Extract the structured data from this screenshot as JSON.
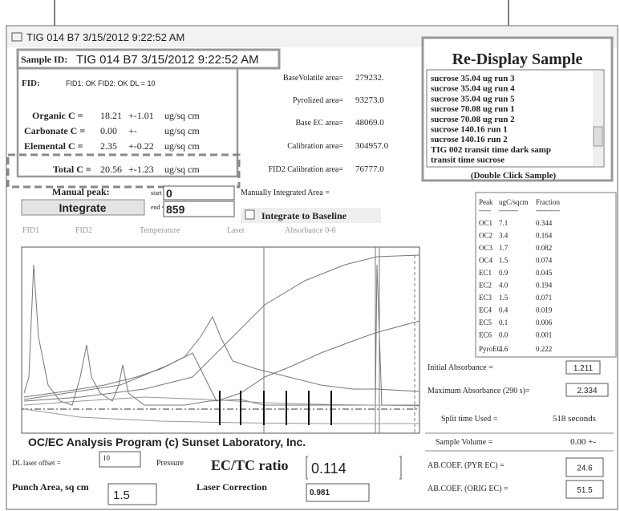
{
  "window_title": "TIG 014 B7 3/15/2012 9:22:52 AM",
  "sample": {
    "label": "Sample ID:",
    "value": "TIG 014 B7 3/15/2012 9:22:52 AM"
  },
  "fid": {
    "label": "FID:",
    "status": "FID1: OK FID2: OK DL = 10"
  },
  "carbon": [
    {
      "label": "Organic C =",
      "value": "18.21",
      "error": "+-1.01",
      "unit": "ug/sq cm"
    },
    {
      "label": "Carbonate C =",
      "value": "0.00",
      "error": "+-",
      "unit": "ug/sq cm"
    },
    {
      "label": "Elemental C =",
      "value": "2.35",
      "error": "+-0.22",
      "unit": "ug/sq cm"
    },
    {
      "label": "Total C =",
      "value": "20.56",
      "error": "+-1.23",
      "unit": "ug/sq cm"
    }
  ],
  "areas": [
    {
      "label": "BaseVolatile area=",
      "value": "279232."
    },
    {
      "label": "Pyrolized area=",
      "value": "93273.0"
    },
    {
      "label": "Base EC area=",
      "value": "48069.0"
    },
    {
      "label": "Calibration area=",
      "value": "304957.0"
    },
    {
      "label": "FID2 Calibration area=",
      "value": "76777.0"
    }
  ],
  "redisplay": {
    "title": "Re-Display Sample",
    "items": [
      "sucrose 35.04 ug run 3",
      "sucrose 35.04 ug run 4",
      "sucrose 35.04 ug run 5",
      "sucrose 70.08 ug run 1",
      "sucrose 70.08 ug run 2",
      "sucrose 140.16 run 1",
      "sucrose 140.16 run 2",
      "TIG 002 transit time dark samp",
      "transit time sucrose"
    ],
    "hint": "(Double Click Sample)"
  },
  "manual_peak": {
    "label": "Manual peak:",
    "start_label": "start =",
    "start": "0",
    "end_label": "end =",
    "end": "859"
  },
  "integrate_button": "Integrate",
  "manual_area_label": "Manually Integrated Area =",
  "integrate_baseline": "Integrate to Baseline",
  "trace_legend": [
    "FID1",
    "FID2",
    "Temperature",
    "Laser",
    "Absorbance 0-6"
  ],
  "peak_table": {
    "headers": [
      "Peak",
      "ugC/sqcm",
      "Fraction"
    ],
    "separator": [
      "-----",
      "--------",
      "----------"
    ],
    "rows": [
      [
        "OC1",
        "7.1",
        "0.344"
      ],
      [
        "OC2",
        "3.4",
        "0.164"
      ],
      [
        "OC3",
        "1.7",
        "0.082"
      ],
      [
        "OC4",
        "1.5",
        "0.074"
      ],
      [
        "EC1",
        "0.9",
        "0.045"
      ],
      [
        "EC2",
        "4.0",
        "0.194"
      ],
      [
        "EC3",
        "1.5",
        "0.071"
      ],
      [
        "EC4",
        "0.4",
        "0.019"
      ],
      [
        "EC5",
        "0.1",
        "0.006"
      ],
      [
        "EC6",
        "0.0",
        "0.001"
      ],
      [
        "PyroEC",
        "4.6",
        "0.222"
      ]
    ]
  },
  "readouts": [
    {
      "label": "Initial Absorbance =",
      "value": "1.211"
    },
    {
      "label": "Maximum Absorbance (290 s)=",
      "value": "2.334"
    },
    {
      "label": "Split time Used =",
      "value": "518 seconds"
    },
    {
      "label": "Sample Volume =",
      "value": "0.00 +-"
    },
    {
      "label": "AB.COEF. (PYR EC) =",
      "value": "24.6"
    },
    {
      "label": "AB.COEF. (ORIG EC) =",
      "value": "51.5"
    }
  ],
  "footer": {
    "program": "OC/EC Analysis Program (c) Sunset Laboratory, Inc.",
    "dl_label": "DL laser offset =",
    "dl_value": "10",
    "pressure": "Pressure",
    "ratio_label": "EC/TC ratio",
    "ratio": "0.114",
    "punch_label": "Punch Area, sq cm",
    "punch": "1.5",
    "laser_label": "Laser Correction",
    "laser": "0.981"
  }
}
